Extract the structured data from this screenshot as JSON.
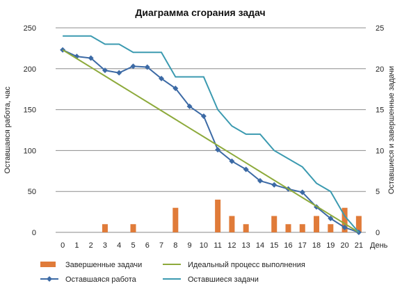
{
  "chart_data": {
    "type": "bar+line",
    "title": "Диаграмма сгорания задач",
    "xlabel": "День",
    "ylabel_left": "Оставшаяся работа, час",
    "ylabel_right": "Оставшиеся и завершенные задачи",
    "ylim_left": [
      0,
      250
    ],
    "ylim_right": [
      0,
      25
    ],
    "yticks_left": [
      0,
      50,
      100,
      150,
      200,
      250
    ],
    "yticks_right": [
      0,
      5,
      10,
      15,
      20,
      25
    ],
    "grid": true,
    "legend_position": "bottom",
    "x": [
      0,
      1,
      2,
      3,
      4,
      5,
      6,
      7,
      8,
      9,
      10,
      11,
      12,
      13,
      14,
      15,
      16,
      17,
      18,
      19,
      20,
      21
    ],
    "series": [
      {
        "name": "Завершенные задачи",
        "kind": "bar",
        "axis": "right",
        "color": "#E07B39",
        "values": [
          0,
          0,
          0,
          1,
          0,
          1,
          0,
          0,
          3,
          0,
          0,
          4,
          2,
          1,
          0,
          2,
          1,
          1,
          2,
          1,
          3,
          2
        ]
      },
      {
        "name": "Оставшаяся работа",
        "kind": "line-marker",
        "axis": "left",
        "color": "#3C6AA5",
        "values": [
          223,
          215,
          213,
          198,
          195,
          203,
          202,
          188,
          176,
          154,
          142,
          101,
          87,
          77,
          63,
          58,
          53,
          49,
          31,
          17,
          6,
          0
        ]
      },
      {
        "name": "Идеальный процесс выполнения",
        "kind": "line",
        "axis": "left",
        "color": "#8DAA3B",
        "values": [
          223,
          212.4,
          201.8,
          191.1,
          180.5,
          169.9,
          159.3,
          148.7,
          138.1,
          127.4,
          116.8,
          106.2,
          95.6,
          85.0,
          74.3,
          63.7,
          53.1,
          42.5,
          31.9,
          21.2,
          10.6,
          0
        ]
      },
      {
        "name": "Оставшиеся задачи",
        "kind": "line",
        "axis": "right",
        "color": "#3B9AB0",
        "values": [
          24,
          24,
          24,
          23,
          23,
          22,
          22,
          22,
          19,
          19,
          19,
          15,
          13,
          12,
          12,
          10,
          9,
          8,
          6,
          5,
          2,
          0
        ]
      }
    ]
  }
}
